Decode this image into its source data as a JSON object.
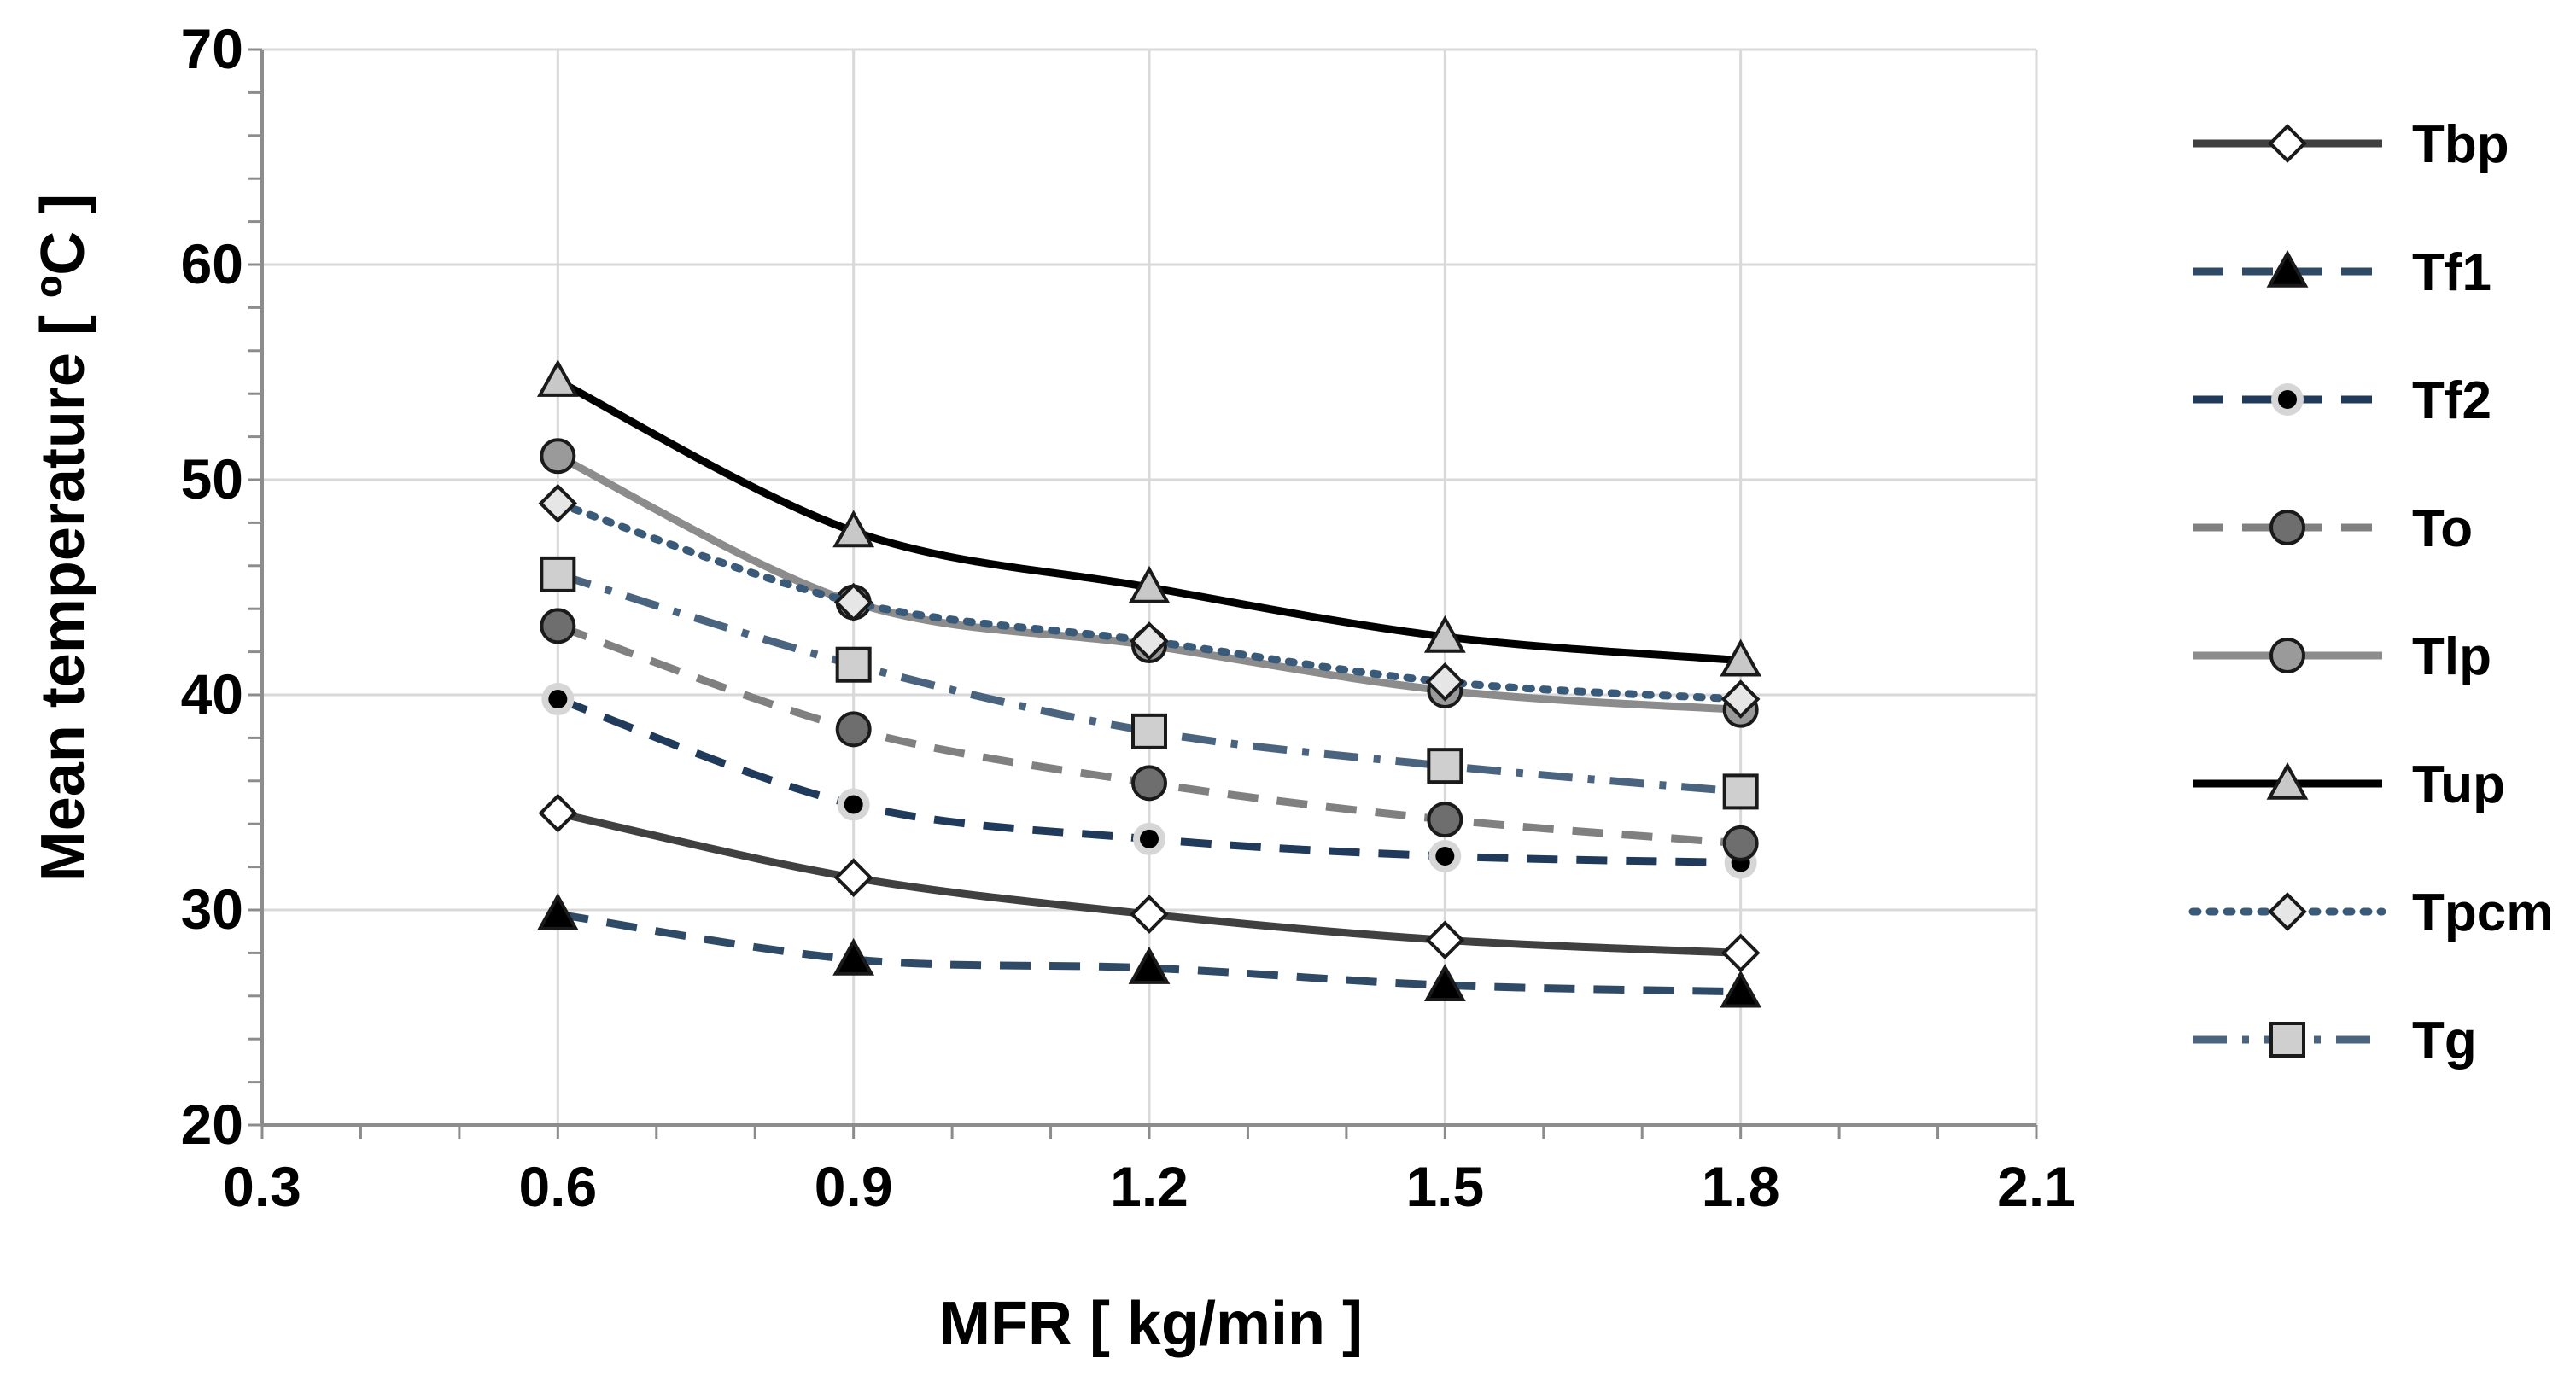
{
  "chart_data": {
    "type": "line",
    "title": "",
    "xlabel": "MFR [ kg/min ]",
    "ylabel": "Mean temperature [ ºC ]",
    "xlim": [
      0.3,
      2.1
    ],
    "ylim": [
      20,
      70
    ],
    "xticks": [
      "0.3",
      "0.6",
      "0.9",
      "1.2",
      "1.5",
      "1.8",
      "2.1"
    ],
    "yticks": [
      "20",
      "30",
      "40",
      "50",
      "60",
      "70"
    ],
    "grid": true,
    "legend_position": "right",
    "x": [
      0.6,
      0.9,
      1.2,
      1.5,
      1.8
    ],
    "series": [
      {
        "name": "Tbp",
        "values": [
          34.5,
          31.5,
          29.8,
          28.6,
          28.0
        ],
        "color": "#404040",
        "line": "solid",
        "marker": "diamond",
        "marker_fill": "#ffffff"
      },
      {
        "name": "Tf1",
        "values": [
          29.8,
          27.7,
          27.3,
          26.5,
          26.2
        ],
        "color": "#2e4a66",
        "line": "dash",
        "marker": "triangle",
        "marker_fill": "#000000"
      },
      {
        "name": "Tf2",
        "values": [
          39.8,
          34.9,
          33.3,
          32.5,
          32.2
        ],
        "color": "#1f3a5a",
        "line": "dash",
        "marker": "dot",
        "marker_fill": "#000000"
      },
      {
        "name": "To",
        "values": [
          43.2,
          38.4,
          35.9,
          34.2,
          33.1
        ],
        "color": "#808080",
        "line": "dash",
        "marker": "circle",
        "marker_fill": "#6e6e6e"
      },
      {
        "name": "Tlp",
        "values": [
          51.1,
          44.3,
          42.3,
          40.2,
          39.3
        ],
        "color": "#8c8c8c",
        "line": "solid",
        "marker": "circle",
        "marker_fill": "#9a9a9a"
      },
      {
        "name": "Tup",
        "values": [
          54.6,
          47.6,
          45.0,
          42.7,
          41.6
        ],
        "color": "#000000",
        "line": "solid",
        "marker": "triangle",
        "marker_fill": "#c8c8c8"
      },
      {
        "name": "Tpcm",
        "values": [
          48.9,
          44.3,
          42.5,
          40.6,
          39.8
        ],
        "color": "#3a5a7a",
        "line": "dot",
        "marker": "diamond",
        "marker_fill": "#e6e6e6"
      },
      {
        "name": "Tg",
        "values": [
          45.6,
          41.4,
          38.3,
          36.7,
          35.5
        ],
        "color": "#4a6480",
        "line": "dashdot",
        "marker": "square",
        "marker_fill": "#cfcfcf"
      }
    ]
  }
}
